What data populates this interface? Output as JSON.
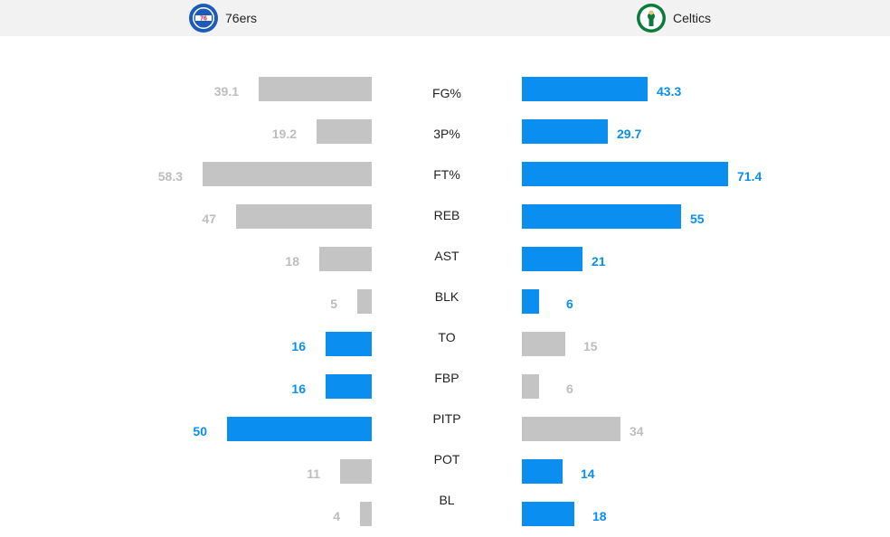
{
  "header": {
    "home_team": {
      "name": "76ers",
      "logo": "76ers-logo-icon"
    },
    "away_team": {
      "name": "Celtics",
      "logo": "celtics-logo-icon"
    }
  },
  "colors": {
    "winner": "#0a8ff0",
    "loser": "#c4c4c4",
    "loser_text": "#bdbdbd",
    "header_bg": "#f2f2f2"
  },
  "stats": [
    {
      "label": "FG%",
      "home": "39.1",
      "away": "43.3",
      "winner": "away"
    },
    {
      "label": "3P%",
      "home": "19.2",
      "away": "29.7",
      "winner": "away"
    },
    {
      "label": "FT%",
      "home": "58.3",
      "away": "71.4",
      "winner": "away"
    },
    {
      "label": "REB",
      "home": "47",
      "away": "55",
      "winner": "away"
    },
    {
      "label": "AST",
      "home": "18",
      "away": "21",
      "winner": "away"
    },
    {
      "label": "BLK",
      "home": "5",
      "away": "6",
      "winner": "away"
    },
    {
      "label": "TO",
      "home": "16",
      "away": "15",
      "winner": "home"
    },
    {
      "label": "FBP",
      "home": "16",
      "away": "6",
      "winner": "home"
    },
    {
      "label": "PITP",
      "home": "50",
      "away": "34",
      "winner": "home"
    },
    {
      "label": "POT",
      "home": "11",
      "away": "14",
      "winner": "away"
    },
    {
      "label": "BL",
      "home": "4",
      "away": "18",
      "winner": "away"
    }
  ]
}
